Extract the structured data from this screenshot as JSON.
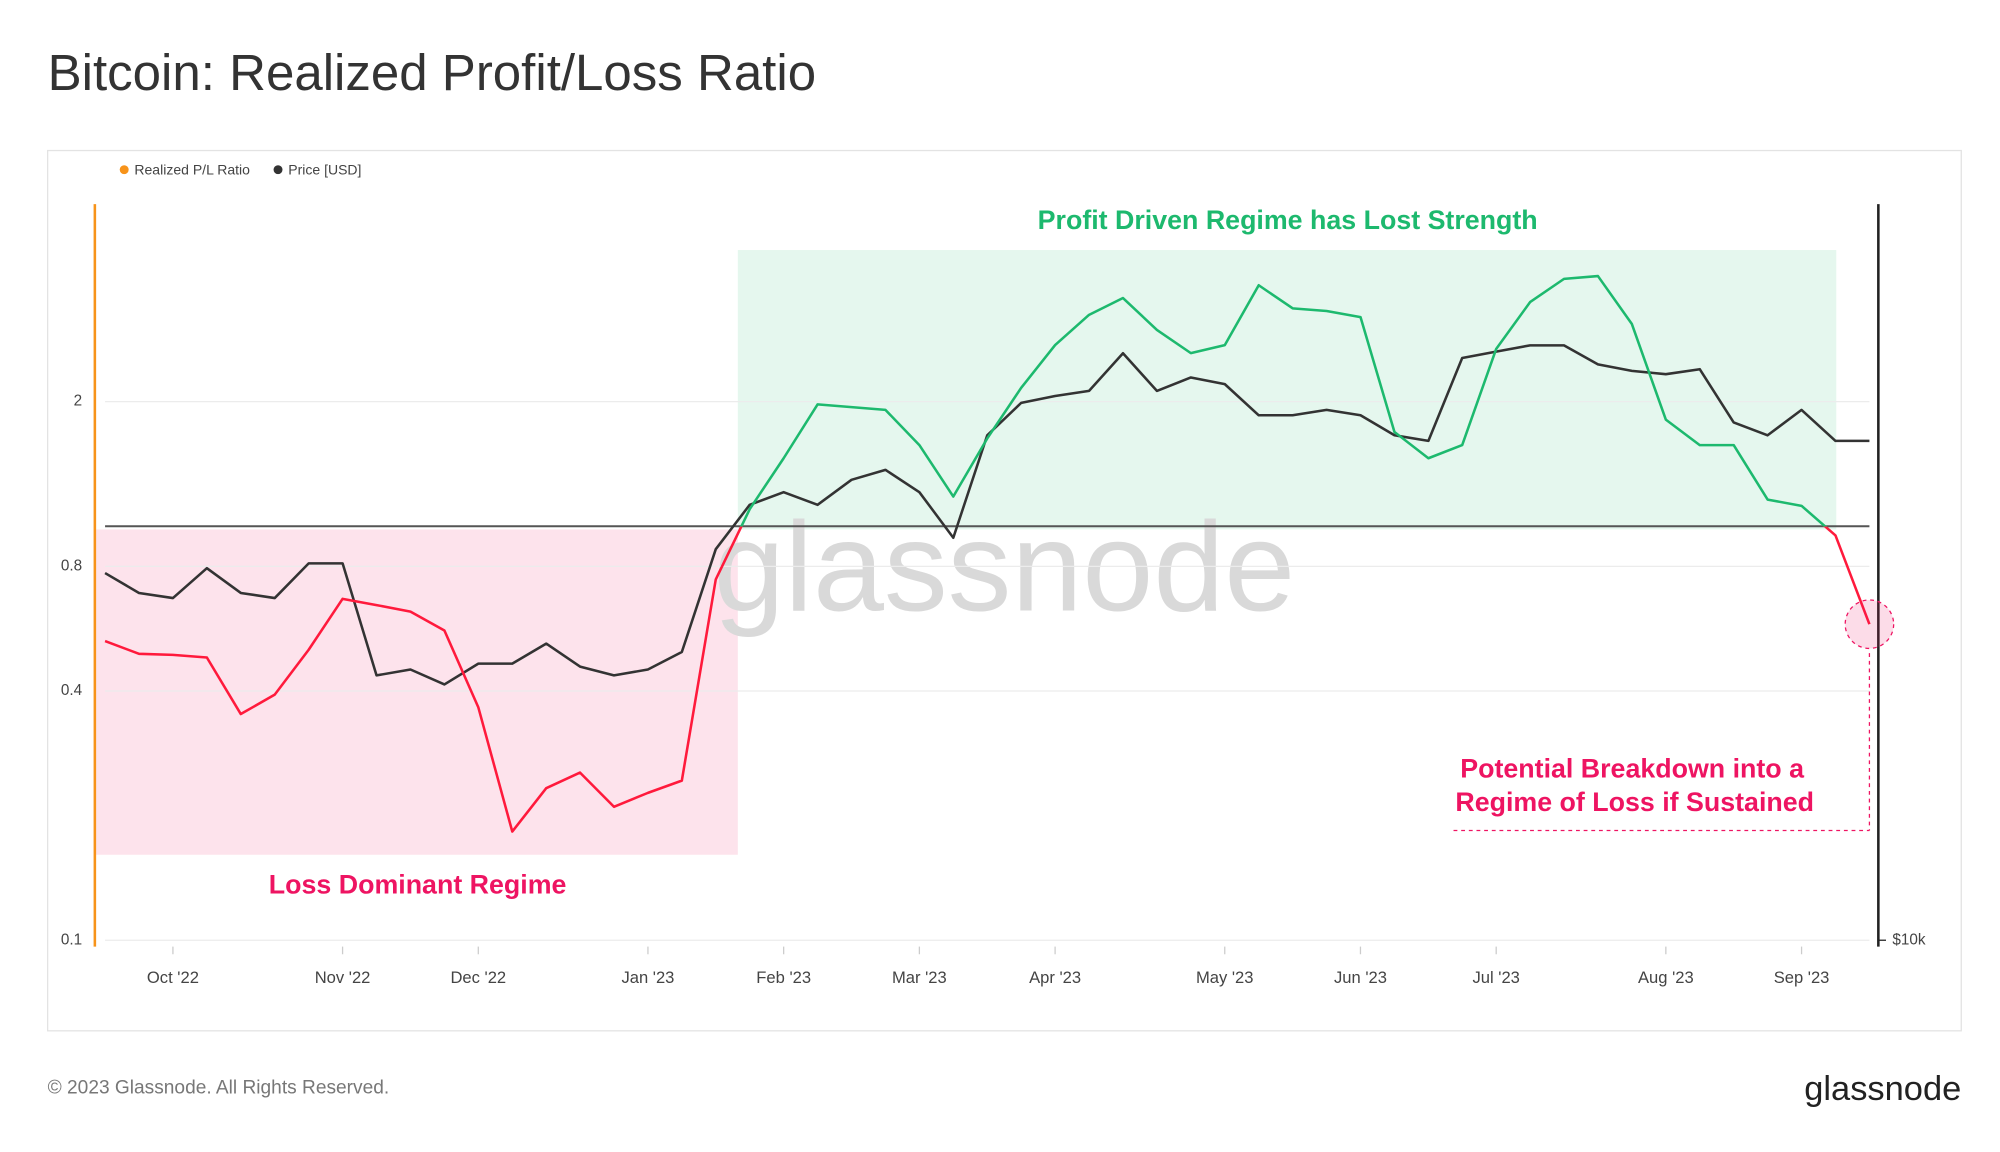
{
  "chart_data": {
    "type": "line",
    "title": "Bitcoin: Realized Profit/Loss Ratio",
    "categories": [
      null,
      null,
      "Oct '22",
      null,
      null,
      null,
      null,
      "Nov '22",
      null,
      null,
      null,
      "Dec '22",
      null,
      null,
      null,
      null,
      "Jan '23",
      null,
      null,
      null,
      "Feb '23",
      null,
      null,
      null,
      "Mar '23",
      null,
      null,
      null,
      "Apr '23",
      null,
      null,
      null,
      null,
      "May '23",
      null,
      null,
      null,
      "Jun '23",
      null,
      null,
      null,
      "Jul '23",
      null,
      null,
      null,
      null,
      "Aug '23",
      null,
      null,
      null,
      "Sep '23",
      null,
      null
    ],
    "series": [
      {
        "name": "Realized P/L Ratio",
        "color": "#f7931a",
        "axis": "y",
        "values": [
          0.528,
          0.492,
          0.489,
          0.482,
          0.352,
          0.392,
          0.503,
          0.668,
          0.645,
          0.622,
          0.56,
          0.365,
          0.183,
          0.233,
          0.254,
          0.21,
          0.227,
          0.243,
          0.744,
          1.1,
          1.46,
          1.97,
          1.94,
          1.91,
          1.57,
          1.18,
          1.63,
          2.16,
          2.74,
          3.24,
          3.56,
          2.98,
          2.62,
          2.74,
          3.82,
          3.36,
          3.31,
          3.2,
          1.69,
          1.46,
          1.57,
          2.68,
          3.48,
          3.96,
          4.02,
          3.08,
          1.81,
          1.57,
          1.57,
          1.16,
          1.12,
          0.95,
          0.58
        ]
      },
      {
        "name": "Price [USD]",
        "color": "#333333",
        "axis": "y2",
        "values": [
          20700,
          19900,
          19700,
          20900,
          19900,
          19700,
          21100,
          21100,
          16900,
          17100,
          16600,
          17300,
          17300,
          18000,
          17200,
          16900,
          17100,
          17700,
          21700,
          23700,
          24300,
          23700,
          24900,
          25400,
          24300,
          22200,
          27200,
          29000,
          29400,
          29700,
          32000,
          29700,
          30500,
          30100,
          28300,
          28300,
          28600,
          28300,
          27200,
          26900,
          31700,
          32100,
          32500,
          32500,
          31300,
          30900,
          30700,
          31000,
          27900,
          27200,
          28600,
          26900,
          26900
        ]
      }
    ],
    "threshold": 1,
    "below_color": "#ff1a3c",
    "above_color": "#1db96e",
    "ylim": [
      0.1,
      6
    ],
    "yticks": [
      0.1,
      0.4,
      0.8,
      2
    ],
    "log_scale": true,
    "y2lim": [
      10000,
      43000
    ],
    "y2ticks": [
      {
        "value": 10000,
        "label": "$10k"
      }
    ],
    "y2_log_scale": true,
    "grid": true,
    "legend": "top-left",
    "annotations": {
      "profit": "Profit Driven Regime has Lost Strength",
      "loss": "Loss Dominant Regime",
      "breakdown": [
        "Potential Breakdown into a",
        "Regime of Loss if Sustained"
      ]
    },
    "watermark": "glassnode",
    "footer": "© 2023 Glassnode. All Rights Reserved.",
    "logo": "glassnode"
  }
}
